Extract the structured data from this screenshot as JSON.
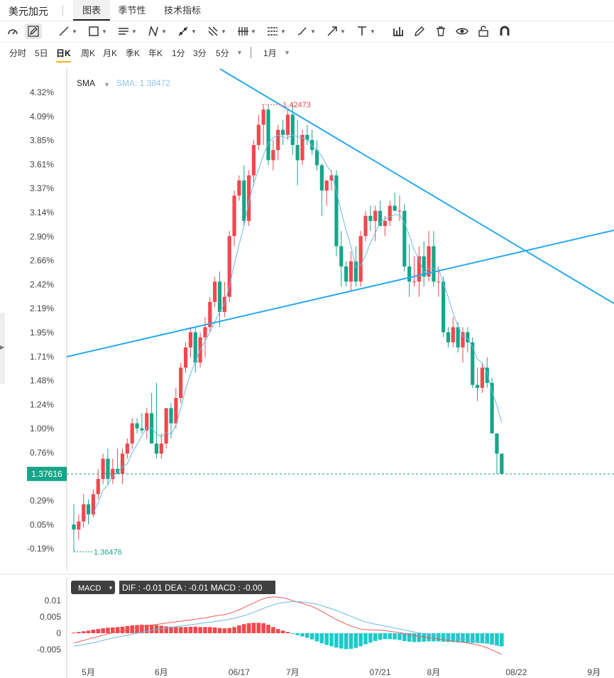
{
  "symbol": "美元加元",
  "tabs": [
    {
      "label": "图表",
      "active": true
    },
    {
      "label": "季节性",
      "active": false
    },
    {
      "label": "技术指标",
      "active": false
    }
  ],
  "tools": [
    "measure-icon",
    "pen-icon",
    "line-icon",
    "rectangle-icon",
    "channel-icon",
    "pattern-icon",
    "ray-icon",
    "fork-icon",
    "bars-icon",
    "fib-icon",
    "brush-icon",
    "arrow-icon",
    "text-icon",
    "column-chart-icon",
    "edit-icon",
    "trash-icon",
    "eye-icon",
    "lock-icon",
    "magnet-icon"
  ],
  "periods": [
    {
      "label": "分时",
      "active": false
    },
    {
      "label": "5日",
      "active": false
    },
    {
      "label": "日K",
      "active": true
    },
    {
      "label": "周K",
      "active": false
    },
    {
      "label": "月K",
      "active": false
    },
    {
      "label": "季K",
      "active": false
    },
    {
      "label": "年K",
      "active": false
    },
    {
      "label": "1分",
      "active": false
    },
    {
      "label": "3分",
      "active": false
    },
    {
      "label": "5分",
      "active": false
    }
  ],
  "range_label": "1月",
  "indicator": {
    "name": "SMA",
    "value_label": "SMA: 1.38472"
  },
  "macd": {
    "name": "MACD",
    "stats": "DIF : -0.01   DEA : -0.01   MACD : -0.00",
    "y_ticks": [
      "0.01",
      "0.005",
      "0",
      "-0.005"
    ]
  },
  "colors": {
    "up": "#f0484e",
    "down": "#17a589",
    "trend": "#27a9ec",
    "sma": "#6ab8e6",
    "dif": "#ee5a5a",
    "dea": "#6ab8e6",
    "hist_up": "#f0484e",
    "hist_down": "#1ec9c9",
    "current": "#17a589"
  },
  "chart_data": {
    "type": "candlestick",
    "y_tick_labels": [
      "4.32%",
      "4.09%",
      "3.85%",
      "3.61%",
      "3.37%",
      "3.14%",
      "2.90%",
      "2.66%",
      "2.42%",
      "2.19%",
      "1.95%",
      "1.71%",
      "1.48%",
      "1.24%",
      "1.00%",
      "0.76%",
      "0.53%",
      "0.29%",
      "0.05%",
      "-0.19%"
    ],
    "x_tick_labels": [
      "5月",
      "6月",
      "06/17",
      "7月",
      "07/21",
      "8月",
      "08/22",
      "9月"
    ],
    "high_label": "1.42473",
    "low_label": "1.36476",
    "current_price": "1.37616",
    "ohlc_pct": [
      [
        0.05,
        0.25,
        -0.22,
        0.0
      ],
      [
        0.0,
        0.15,
        -0.1,
        0.08
      ],
      [
        0.08,
        0.35,
        0.02,
        0.25
      ],
      [
        0.25,
        0.3,
        0.05,
        0.15
      ],
      [
        0.15,
        0.4,
        0.12,
        0.35
      ],
      [
        0.35,
        0.6,
        0.3,
        0.5
      ],
      [
        0.5,
        0.75,
        0.45,
        0.7
      ],
      [
        0.7,
        0.8,
        0.45,
        0.5
      ],
      [
        0.5,
        0.7,
        0.45,
        0.6
      ],
      [
        0.6,
        0.8,
        0.55,
        0.55
      ],
      [
        0.55,
        0.8,
        0.45,
        0.75
      ],
      [
        0.75,
        0.9,
        0.7,
        0.85
      ],
      [
        0.85,
        1.1,
        0.8,
        1.05
      ],
      [
        1.05,
        1.1,
        0.95,
        1.0
      ],
      [
        1.0,
        1.15,
        0.95,
        0.98
      ],
      [
        0.98,
        1.2,
        0.9,
        1.15
      ],
      [
        1.15,
        1.35,
        1.05,
        0.85
      ],
      [
        0.85,
        1.45,
        0.7,
        0.75
      ],
      [
        0.75,
        0.95,
        0.7,
        0.85
      ],
      [
        0.85,
        1.1,
        0.8,
        1.2
      ],
      [
        1.2,
        1.25,
        0.9,
        1.05
      ],
      [
        1.05,
        1.4,
        1.0,
        1.3
      ],
      [
        1.3,
        1.65,
        1.25,
        1.6
      ],
      [
        1.6,
        1.85,
        1.55,
        1.8
      ],
      [
        1.8,
        2.0,
        1.7,
        1.95
      ],
      [
        1.95,
        2.0,
        1.55,
        1.65
      ],
      [
        1.65,
        1.95,
        1.6,
        1.9
      ],
      [
        1.9,
        2.1,
        1.7,
        2.0
      ],
      [
        2.0,
        2.3,
        1.95,
        2.25
      ],
      [
        2.25,
        2.5,
        2.2,
        2.45
      ],
      [
        2.45,
        2.55,
        2.0,
        2.15
      ],
      [
        2.15,
        2.45,
        2.1,
        2.3
      ],
      [
        2.3,
        2.95,
        2.25,
        2.9
      ],
      [
        2.9,
        3.35,
        2.8,
        3.3
      ],
      [
        3.3,
        3.5,
        3.25,
        3.45
      ],
      [
        3.45,
        3.6,
        3.0,
        3.05
      ],
      [
        3.05,
        3.55,
        3.0,
        3.5
      ],
      [
        3.5,
        3.85,
        3.4,
        3.8
      ],
      [
        3.8,
        4.1,
        3.75,
        4.0
      ],
      [
        4.0,
        4.2,
        3.8,
        4.15
      ],
      [
        4.15,
        4.2,
        3.6,
        3.65
      ],
      [
        3.65,
        3.85,
        3.55,
        3.75
      ],
      [
        3.75,
        4.0,
        3.65,
        3.95
      ],
      [
        3.95,
        4.05,
        3.8,
        3.9
      ],
      [
        3.9,
        4.15,
        3.85,
        4.1
      ],
      [
        4.1,
        4.2,
        3.7,
        3.8
      ],
      [
        3.8,
        4.05,
        3.4,
        3.65
      ],
      [
        3.65,
        3.95,
        3.6,
        3.9
      ],
      [
        3.9,
        4.0,
        3.8,
        3.85
      ],
      [
        3.85,
        3.95,
        3.7,
        3.75
      ],
      [
        3.75,
        3.85,
        3.55,
        3.6
      ],
      [
        3.6,
        3.62,
        3.1,
        3.35
      ],
      [
        3.35,
        3.45,
        3.2,
        3.45
      ],
      [
        3.45,
        3.55,
        3.35,
        3.5
      ],
      [
        3.5,
        3.55,
        2.7,
        2.8
      ],
      [
        2.8,
        2.95,
        2.4,
        2.6
      ],
      [
        2.6,
        2.65,
        2.4,
        2.45
      ],
      [
        2.45,
        2.75,
        2.35,
        2.65
      ],
      [
        2.65,
        2.8,
        2.4,
        2.45
      ],
      [
        2.45,
        2.95,
        2.4,
        2.9
      ],
      [
        2.9,
        3.15,
        2.85,
        3.1
      ],
      [
        3.1,
        3.2,
        2.95,
        3.05
      ],
      [
        3.05,
        3.2,
        2.85,
        3.15
      ],
      [
        3.15,
        3.25,
        3.0,
        3.0
      ],
      [
        3.0,
        3.1,
        2.9,
        3.05
      ],
      [
        3.05,
        3.25,
        3.0,
        3.2
      ],
      [
        3.2,
        3.33,
        3.15,
        3.15
      ],
      [
        3.15,
        3.3,
        3.05,
        3.15
      ],
      [
        3.15,
        3.22,
        2.55,
        2.6
      ],
      [
        2.6,
        2.82,
        2.3,
        2.45
      ],
      [
        2.45,
        2.7,
        2.4,
        2.45
      ],
      [
        2.45,
        2.8,
        2.3,
        2.7
      ],
      [
        2.7,
        2.85,
        2.4,
        2.5
      ],
      [
        2.5,
        2.95,
        2.45,
        2.8
      ],
      [
        2.8,
        2.95,
        2.4,
        2.45
      ],
      [
        2.45,
        2.6,
        2.3,
        2.45
      ],
      [
        2.45,
        2.5,
        1.9,
        1.95
      ],
      [
        1.95,
        2.0,
        1.8,
        1.85
      ],
      [
        1.85,
        2.1,
        1.8,
        2.0
      ],
      [
        2.0,
        2.05,
        1.75,
        1.8
      ],
      [
        1.8,
        2.0,
        1.65,
        1.95
      ],
      [
        1.95,
        2.0,
        1.75,
        1.85
      ],
      [
        1.85,
        1.9,
        1.4,
        1.43
      ],
      [
        1.43,
        1.6,
        1.27,
        1.4
      ],
      [
        1.4,
        1.65,
        1.35,
        1.6
      ],
      [
        1.6,
        1.7,
        1.4,
        1.45
      ],
      [
        1.45,
        1.5,
        0.95,
        0.95
      ],
      [
        0.95,
        0.95,
        0.55,
        0.75
      ],
      [
        0.75,
        0.75,
        0.55,
        0.55
      ]
    ],
    "macd_hist": [
      0.0002,
      0.0004,
      0.0006,
      0.0008,
      0.0011,
      0.0013,
      0.0015,
      0.0017,
      0.0018,
      0.0019,
      0.002,
      0.0022,
      0.0024,
      0.0025,
      0.0026,
      0.0026,
      0.0026,
      0.0025,
      0.0023,
      0.0021,
      0.002,
      0.0019,
      0.0019,
      0.0019,
      0.002,
      0.002,
      0.0019,
      0.0019,
      0.0019,
      0.0018,
      0.0016,
      0.0015,
      0.0016,
      0.0019,
      0.0024,
      0.0028,
      0.0031,
      0.0032,
      0.0032,
      0.0031,
      0.0026,
      0.0019,
      0.0013,
      0.0008,
      0.0004,
      -0.0002,
      -0.0006,
      -0.001,
      -0.0014,
      -0.0019,
      -0.0025,
      -0.0031,
      -0.0036,
      -0.004,
      -0.0044,
      -0.0047,
      -0.0049,
      -0.0048,
      -0.0045,
      -0.004,
      -0.0034,
      -0.0029,
      -0.0024,
      -0.002,
      -0.0018,
      -0.0018,
      -0.0019,
      -0.0021,
      -0.0024,
      -0.0026,
      -0.0027,
      -0.0027,
      -0.0026,
      -0.0025,
      -0.0025,
      -0.0025,
      -0.0026,
      -0.0027,
      -0.0027,
      -0.0028,
      -0.0028,
      -0.0029,
      -0.003,
      -0.003,
      -0.0031,
      -0.0032,
      -0.0035,
      -0.0038,
      -0.004
    ],
    "dif": [
      -0.003,
      -0.0026,
      -0.0022,
      -0.0018,
      -0.0014,
      -0.001,
      -0.0006,
      -0.0002,
      0.0001,
      0.0004,
      0.0007,
      0.001,
      0.0014,
      0.0017,
      0.002,
      0.0023,
      0.0025,
      0.0027,
      0.0029,
      0.0031,
      0.0033,
      0.0035,
      0.0037,
      0.0039,
      0.0041,
      0.0043,
      0.0045,
      0.0047,
      0.005,
      0.0053,
      0.0055,
      0.0057,
      0.0061,
      0.0066,
      0.0072,
      0.0079,
      0.0086,
      0.0093,
      0.01,
      0.0106,
      0.011,
      0.0112,
      0.0111,
      0.0109,
      0.0105,
      0.01,
      0.0096,
      0.0092,
      0.0087,
      0.0082,
      0.0075,
      0.0067,
      0.0059,
      0.005,
      0.0042,
      0.0035,
      0.0028,
      0.0022,
      0.0017,
      0.0013,
      0.0011,
      0.001,
      0.001,
      0.0009,
      0.0008,
      0.0006,
      0.0004,
      0.0002,
      -0.0001,
      -0.0004,
      -0.0007,
      -0.001,
      -0.0012,
      -0.0014,
      -0.0016,
      -0.0018,
      -0.002,
      -0.0022,
      -0.0024,
      -0.0026,
      -0.0028,
      -0.003,
      -0.0033,
      -0.0036,
      -0.004,
      -0.0045,
      -0.0051,
      -0.0058,
      -0.0065
    ],
    "dea": [
      -0.004,
      -0.0038,
      -0.0035,
      -0.0032,
      -0.0029,
      -0.0026,
      -0.0022,
      -0.0018,
      -0.0015,
      -0.0012,
      -0.0009,
      -0.0006,
      -0.0003,
      0.0,
      0.0003,
      0.0006,
      0.0009,
      0.0012,
      0.0014,
      0.0016,
      0.0018,
      0.002,
      0.0022,
      0.0024,
      0.0026,
      0.0028,
      0.003,
      0.0032,
      0.0034,
      0.0036,
      0.0038,
      0.004,
      0.0043,
      0.0046,
      0.005,
      0.0054,
      0.0059,
      0.0064,
      0.007,
      0.0076,
      0.0082,
      0.0087,
      0.0091,
      0.0094,
      0.0096,
      0.0097,
      0.0097,
      0.0096,
      0.0094,
      0.0092,
      0.0089,
      0.0085,
      0.008,
      0.0075,
      0.007,
      0.0064,
      0.0058,
      0.0052,
      0.0046,
      0.004,
      0.0035,
      0.0031,
      0.0028,
      0.0025,
      0.0022,
      0.0019,
      0.0016,
      0.0013,
      0.001,
      0.0007,
      0.0004,
      0.0001,
      -0.0002,
      -0.0004,
      -0.0006,
      -0.0008,
      -0.001,
      -0.0012,
      -0.0014,
      -0.0016,
      -0.0018,
      -0.002,
      -0.0022,
      -0.0024,
      -0.0027,
      -0.003,
      -0.0033,
      -0.0037,
      -0.0041
    ]
  }
}
